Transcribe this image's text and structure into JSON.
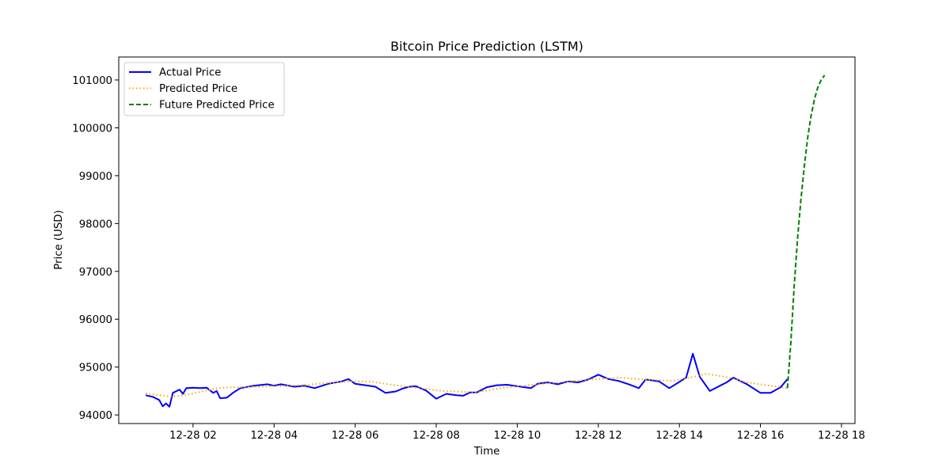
{
  "chart_data": {
    "type": "line",
    "title": "Bitcoin Price Prediction (LSTM)",
    "xlabel": "Time",
    "ylabel": "Price (USD)",
    "x_ticks": [
      {
        "value": "2024-12-28T02:00",
        "label": "12-28 02"
      },
      {
        "value": "2024-12-28T04:00",
        "label": "12-28 04"
      },
      {
        "value": "2024-12-28T06:00",
        "label": "12-28 06"
      },
      {
        "value": "2024-12-28T08:00",
        "label": "12-28 08"
      },
      {
        "value": "2024-12-28T10:00",
        "label": "12-28 10"
      },
      {
        "value": "2024-12-28T12:00",
        "label": "12-28 12"
      },
      {
        "value": "2024-12-28T14:00",
        "label": "12-28 14"
      },
      {
        "value": "2024-12-28T16:00",
        "label": "12-28 16"
      },
      {
        "value": "2024-12-28T18:00",
        "label": "12-28 18"
      }
    ],
    "y_ticks": [
      94000,
      95000,
      96000,
      97000,
      98000,
      99000,
      100000,
      101000
    ],
    "xlim": [
      "2024-12-28T00:10",
      "2024-12-28T18:20"
    ],
    "ylim": [
      93820,
      101480
    ],
    "legend_position": "top-left",
    "grid": false,
    "series": [
      {
        "name": "Actual Price",
        "color": "#0000ff",
        "style": "solid",
        "points": [
          [
            "2024-12-28T00:50",
            94410
          ],
          [
            "2024-12-28T01:00",
            94380
          ],
          [
            "2024-12-28T01:10",
            94310
          ],
          [
            "2024-12-28T01:15",
            94180
          ],
          [
            "2024-12-28T01:20",
            94240
          ],
          [
            "2024-12-28T01:25",
            94170
          ],
          [
            "2024-12-28T01:30",
            94460
          ],
          [
            "2024-12-28T01:40",
            94530
          ],
          [
            "2024-12-28T01:45",
            94440
          ],
          [
            "2024-12-28T01:50",
            94560
          ],
          [
            "2024-12-28T02:00",
            94570
          ],
          [
            "2024-12-28T02:10",
            94560
          ],
          [
            "2024-12-28T02:20",
            94570
          ],
          [
            "2024-12-28T02:30",
            94460
          ],
          [
            "2024-12-28T02:35",
            94500
          ],
          [
            "2024-12-28T02:40",
            94350
          ],
          [
            "2024-12-28T02:50",
            94360
          ],
          [
            "2024-12-28T03:00",
            94470
          ],
          [
            "2024-12-28T03:10",
            94560
          ],
          [
            "2024-12-28T03:30",
            94610
          ],
          [
            "2024-12-28T03:50",
            94640
          ],
          [
            "2024-12-28T04:00",
            94610
          ],
          [
            "2024-12-28T04:10",
            94640
          ],
          [
            "2024-12-28T04:30",
            94590
          ],
          [
            "2024-12-28T04:45",
            94610
          ],
          [
            "2024-12-28T05:00",
            94560
          ],
          [
            "2024-12-28T05:20",
            94650
          ],
          [
            "2024-12-28T05:40",
            94700
          ],
          [
            "2024-12-28T05:50",
            94750
          ],
          [
            "2024-12-28T06:00",
            94650
          ],
          [
            "2024-12-28T06:15",
            94620
          ],
          [
            "2024-12-28T06:30",
            94590
          ],
          [
            "2024-12-28T06:45",
            94460
          ],
          [
            "2024-12-28T07:00",
            94490
          ],
          [
            "2024-12-28T07:10",
            94550
          ],
          [
            "2024-12-28T07:20",
            94590
          ],
          [
            "2024-12-28T07:30",
            94600
          ],
          [
            "2024-12-28T07:45",
            94510
          ],
          [
            "2024-12-28T08:00",
            94340
          ],
          [
            "2024-12-28T08:15",
            94440
          ],
          [
            "2024-12-28T08:30",
            94410
          ],
          [
            "2024-12-28T08:40",
            94400
          ],
          [
            "2024-12-28T08:50",
            94470
          ],
          [
            "2024-12-28T09:00",
            94470
          ],
          [
            "2024-12-28T09:15",
            94580
          ],
          [
            "2024-12-28T09:30",
            94620
          ],
          [
            "2024-12-28T09:45",
            94630
          ],
          [
            "2024-12-28T10:00",
            94600
          ],
          [
            "2024-12-28T10:20",
            94560
          ],
          [
            "2024-12-28T10:30",
            94650
          ],
          [
            "2024-12-28T10:45",
            94680
          ],
          [
            "2024-12-28T11:00",
            94640
          ],
          [
            "2024-12-28T11:15",
            94700
          ],
          [
            "2024-12-28T11:30",
            94680
          ],
          [
            "2024-12-28T11:45",
            94740
          ],
          [
            "2024-12-28T12:00",
            94840
          ],
          [
            "2024-12-28T12:15",
            94750
          ],
          [
            "2024-12-28T12:30",
            94710
          ],
          [
            "2024-12-28T12:45",
            94640
          ],
          [
            "2024-12-28T13:00",
            94560
          ],
          [
            "2024-12-28T13:10",
            94740
          ],
          [
            "2024-12-28T13:30",
            94700
          ],
          [
            "2024-12-28T13:45",
            94560
          ],
          [
            "2024-12-28T14:00",
            94690
          ],
          [
            "2024-12-28T14:10",
            94780
          ],
          [
            "2024-12-28T14:20",
            95280
          ],
          [
            "2024-12-28T14:30",
            94800
          ],
          [
            "2024-12-28T14:45",
            94500
          ],
          [
            "2024-12-28T15:00",
            94610
          ],
          [
            "2024-12-28T15:10",
            94680
          ],
          [
            "2024-12-28T15:20",
            94780
          ],
          [
            "2024-12-28T15:40",
            94640
          ],
          [
            "2024-12-28T16:00",
            94460
          ],
          [
            "2024-12-28T16:15",
            94460
          ],
          [
            "2024-12-28T16:30",
            94580
          ],
          [
            "2024-12-28T16:40",
            94750
          ]
        ]
      },
      {
        "name": "Predicted Price",
        "color": "#ffa500",
        "style": "dotted",
        "points": [
          [
            "2024-12-28T00:50",
            94450
          ],
          [
            "2024-12-28T01:30",
            94380
          ],
          [
            "2024-12-28T02:00",
            94450
          ],
          [
            "2024-12-28T02:40",
            94570
          ],
          [
            "2024-12-28T03:40",
            94590
          ],
          [
            "2024-12-28T04:40",
            94620
          ],
          [
            "2024-12-28T05:50",
            94700
          ],
          [
            "2024-12-28T06:20",
            94700
          ],
          [
            "2024-12-28T07:00",
            94620
          ],
          [
            "2024-12-28T08:10",
            94500
          ],
          [
            "2024-12-28T09:00",
            94470
          ],
          [
            "2024-12-28T09:40",
            94570
          ],
          [
            "2024-12-28T10:30",
            94640
          ],
          [
            "2024-12-28T11:30",
            94720
          ],
          [
            "2024-12-28T12:30",
            94780
          ],
          [
            "2024-12-28T13:10",
            94740
          ],
          [
            "2024-12-28T13:50",
            94710
          ],
          [
            "2024-12-28T14:10",
            94760
          ],
          [
            "2024-12-28T14:40",
            94860
          ],
          [
            "2024-12-28T15:10",
            94790
          ],
          [
            "2024-12-28T15:40",
            94680
          ],
          [
            "2024-12-28T16:40",
            94560
          ]
        ]
      },
      {
        "name": "Future Predicted Price",
        "color": "#008000",
        "style": "dashed",
        "points": [
          [
            "2024-12-28T16:40",
            94560
          ],
          [
            "2024-12-28T16:45",
            95500
          ],
          [
            "2024-12-28T16:50",
            96700
          ],
          [
            "2024-12-28T16:55",
            97700
          ],
          [
            "2024-12-28T17:00",
            98500
          ],
          [
            "2024-12-28T17:05",
            99200
          ],
          [
            "2024-12-28T17:10",
            99800
          ],
          [
            "2024-12-28T17:15",
            100250
          ],
          [
            "2024-12-28T17:20",
            100600
          ],
          [
            "2024-12-28T17:25",
            100850
          ],
          [
            "2024-12-28T17:30",
            101000
          ],
          [
            "2024-12-28T17:35",
            101100
          ]
        ]
      }
    ]
  }
}
